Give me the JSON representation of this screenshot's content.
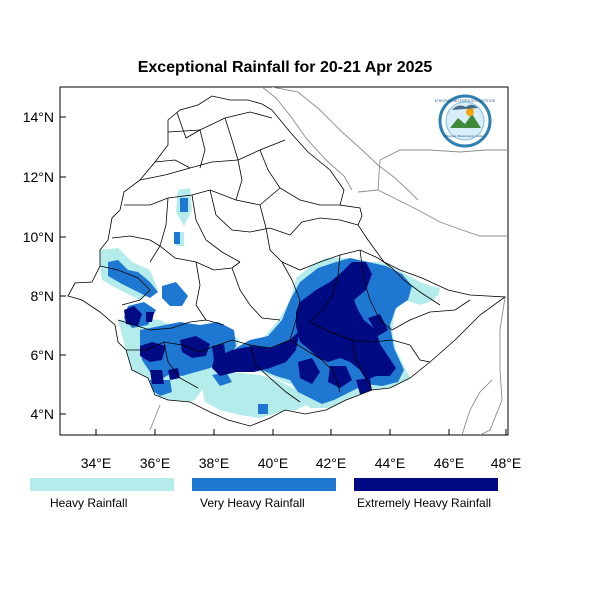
{
  "title": "Exceptional Rainfall for 20-21 Apr 2025",
  "axes": {
    "x_ticks": [
      "34°E",
      "36°E",
      "38°E",
      "40°E",
      "42°E",
      "44°E",
      "46°E",
      "48°E"
    ],
    "y_ticks": [
      "14°N",
      "12°N",
      "10°N",
      "8°N",
      "6°N",
      "4°N"
    ]
  },
  "logo": {
    "text_top": "ETHIOPIAN METEOROLOGY INSTITUTE",
    "text_bottom": "Ethiopian Meteorology Institute"
  },
  "legend": {
    "items": [
      {
        "label": "Heavy Rainfall",
        "color": "#b4ecec"
      },
      {
        "label": "Very Heavy Rainfall",
        "color": "#1e78d2"
      },
      {
        "label": "Extremely Heavy Rainfall",
        "color": "#000a82"
      }
    ]
  }
}
